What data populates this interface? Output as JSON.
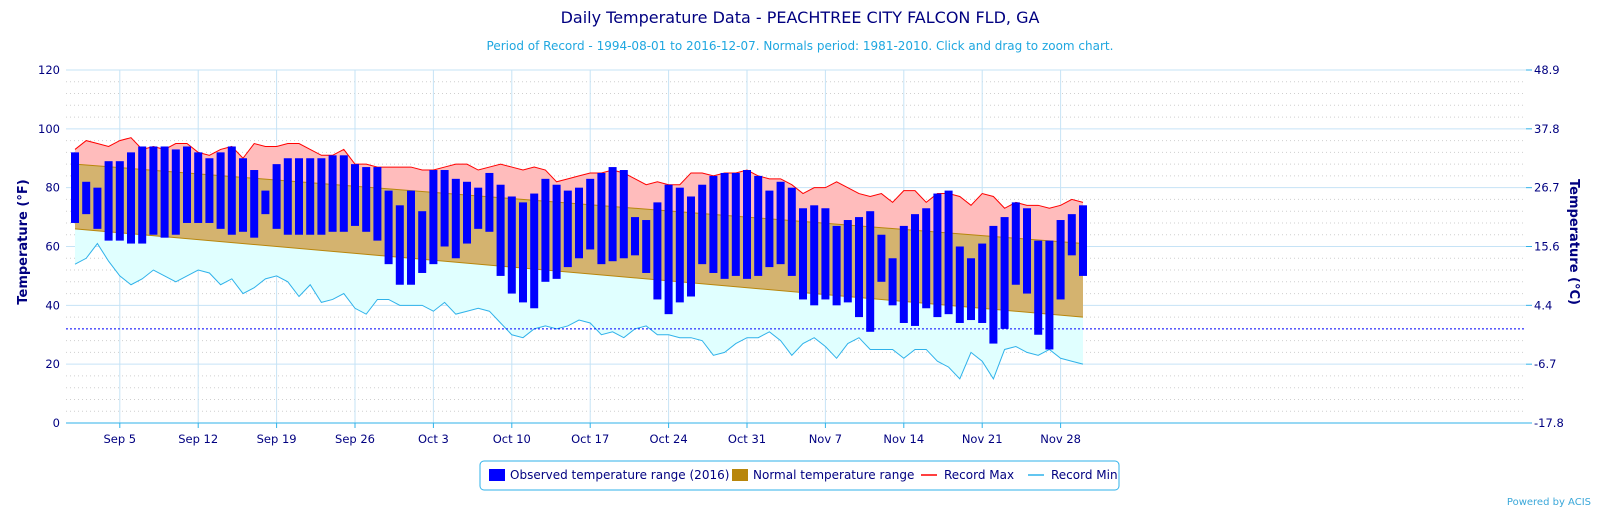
{
  "chart_data": {
    "type": "bar",
    "title": "Daily Temperature Data - PEACHTREE CITY FALCON FLD, GA",
    "subtitle": "Period of Record - 1994-08-01 to 2016-12-07. Normals period: 1981-2010. Click and drag to zoom chart.",
    "ylabel_left": "Temperature (°F)",
    "ylabel_right": "Temperature (°C)",
    "ylim": [
      0,
      120
    ],
    "y_ticks": [
      0,
      20,
      40,
      60,
      80,
      100,
      120
    ],
    "y_ticks_right": [
      "-17.8",
      "-6.7",
      "4.4",
      "15.6",
      "26.7",
      "37.8",
      "48.9"
    ],
    "x_ticks": [
      "Sep 5",
      "Sep 12",
      "Sep 19",
      "Sep 26",
      "Oct 3",
      "Oct 10",
      "Oct 17",
      "Oct 24",
      "Oct 31",
      "Nov 7",
      "Nov 14",
      "Nov 21",
      "Nov 28"
    ],
    "x_tick_day_index": [
      4,
      11,
      18,
      25,
      32,
      39,
      46,
      53,
      60,
      67,
      74,
      81,
      88
    ],
    "freezing_line": 32,
    "grid": true,
    "legend_position": "bottom-center",
    "legend": {
      "observed": "Observed temperature range (2016)",
      "normal": "Normal temperature range",
      "record_max": "Record Max",
      "record_min": "Record Min"
    },
    "colors": {
      "observed": "#0000ff",
      "normal_fill": "#d4b36f",
      "normal_line": "#b8860b",
      "legend_normal": "#b8860b",
      "record_max_line": "#ff0000",
      "record_max_fill": "#ffbcbc",
      "record_min_line": "#2fb2ea",
      "record_min_fill": "#e0ffff",
      "grid": "#c6e3f6",
      "freezing": "#0000ff"
    },
    "series": [
      {
        "name": "Observed temperature range (2016)",
        "start_date": "Sep 1",
        "low": [
          68,
          71,
          66,
          62,
          62,
          61,
          61,
          64,
          63,
          64,
          68,
          68,
          68,
          66,
          64,
          65,
          63,
          71,
          66,
          64,
          64,
          64,
          64,
          65,
          65,
          67,
          65,
          62,
          54,
          47,
          47,
          51,
          54,
          60,
          56,
          61,
          66,
          65,
          50,
          44,
          41,
          39,
          48,
          49,
          53,
          56,
          59,
          54,
          55,
          56,
          57,
          51,
          42,
          37,
          41,
          43,
          54,
          51,
          49,
          50,
          49,
          50,
          53,
          54,
          50,
          42,
          40,
          42,
          40,
          41,
          36,
          31,
          48,
          40,
          34,
          33,
          39,
          36,
          37,
          34,
          35,
          34,
          27,
          32,
          47,
          44,
          30,
          25,
          42,
          57,
          50
        ],
        "high": [
          92,
          82,
          80,
          89,
          89,
          92,
          94,
          94,
          94,
          93,
          94,
          92,
          90,
          92,
          94,
          90,
          86,
          79,
          88,
          90,
          90,
          90,
          90,
          91,
          91,
          88,
          87,
          87,
          79,
          74,
          79,
          72,
          86,
          86,
          83,
          82,
          80,
          85,
          81,
          77,
          75,
          78,
          83,
          81,
          79,
          80,
          83,
          85,
          87,
          86,
          70,
          69,
          75,
          81,
          80,
          77,
          81,
          84,
          85,
          85,
          86,
          84,
          79,
          82,
          80,
          73,
          74,
          73,
          67,
          69,
          70,
          72,
          64,
          56,
          67,
          71,
          73,
          78,
          79,
          60,
          56,
          61,
          67,
          70,
          75,
          73,
          62,
          62,
          69,
          71,
          74
        ]
      },
      {
        "name": "Normal temperature range",
        "high_start": 88,
        "high_end": 61,
        "low_start": 66,
        "low_end": 36
      },
      {
        "name": "Record Max",
        "values": [
          93,
          96,
          95,
          94,
          96,
          97,
          93,
          94,
          93,
          95,
          95,
          92,
          91,
          93,
          94,
          90,
          95,
          94,
          94,
          95,
          95,
          93,
          91,
          91,
          93,
          88,
          88,
          87,
          87,
          87,
          87,
          86,
          86,
          87,
          88,
          88,
          86,
          87,
          88,
          87,
          86,
          87,
          86,
          82,
          83,
          84,
          85,
          85,
          86,
          85,
          83,
          81,
          82,
          81,
          81,
          85,
          85,
          84,
          85,
          85,
          86,
          84,
          83,
          83,
          81,
          78,
          80,
          80,
          82,
          80,
          78,
          77,
          78,
          75,
          79,
          79,
          75,
          78,
          78,
          77,
          74,
          78,
          77,
          73,
          75,
          74,
          74,
          73,
          74,
          76,
          75
        ]
      },
      {
        "name": "Record Min",
        "values": [
          54,
          56,
          61,
          55,
          50,
          47,
          49,
          52,
          50,
          48,
          50,
          52,
          51,
          47,
          49,
          44,
          46,
          49,
          50,
          48,
          43,
          47,
          41,
          42,
          44,
          39,
          37,
          42,
          42,
          40,
          40,
          40,
          38,
          41,
          37,
          38,
          39,
          38,
          34,
          30,
          29,
          32,
          33,
          32,
          33,
          35,
          34,
          30,
          31,
          29,
          32,
          33,
          30,
          30,
          29,
          29,
          28,
          23,
          24,
          27,
          29,
          29,
          31,
          28,
          23,
          27,
          29,
          26,
          22,
          27,
          29,
          25,
          25,
          25,
          22,
          25,
          25,
          21,
          19,
          15,
          24,
          21,
          15,
          25,
          26,
          24,
          23,
          25,
          22,
          21,
          20
        ]
      }
    ]
  },
  "credit": "Powered by ACIS"
}
